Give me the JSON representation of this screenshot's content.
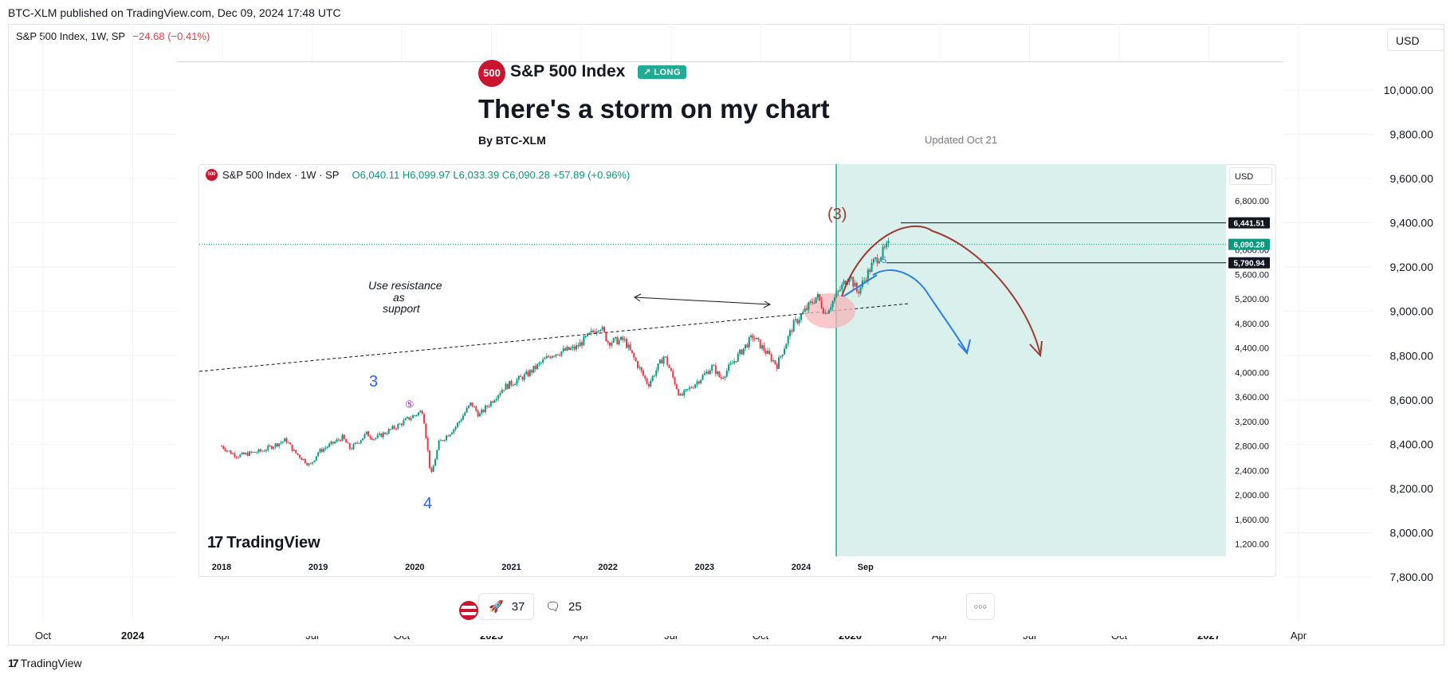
{
  "header": {
    "published_line": "BTC-XLM published on TradingView.com, Dec 09, 2024 17:48 UTC",
    "symbol_line": "S&P 500 Index, 1W, SP",
    "change": "−24.68 (−0.41%)",
    "currency": "USD"
  },
  "idea": {
    "badge": "500",
    "symbol": "S&P 500 Index",
    "direction": "LONG",
    "title": "There's a storm on my chart",
    "author": "By BTC-XLM",
    "updated": "Updated Oct 21"
  },
  "inner_chart": {
    "legend_title": "S&P 500 Index · 1W · SP",
    "ohlc": "O6,040.11 H6,099.97 L6,033.39 C6,090.28 +57.89 (+0.96%)",
    "currency": "USD",
    "price_tags": [
      "6,441.51",
      "6,090.28",
      "5,790.94"
    ],
    "annotations": {
      "resistance_note": [
        "Use resistance",
        "as",
        "support"
      ],
      "wave_3": "3",
      "wave_4": "4",
      "wave_5": "⑤",
      "wave_3_paren": "(3)",
      "wave_5_small": "5"
    },
    "logo": "TradingView"
  },
  "chart_data": [
    {
      "type": "axes",
      "y_ticks": [
        "10,000.00",
        "9,800.00",
        "9,600.00",
        "9,400.00",
        "9,200.00",
        "9,000.00",
        "8,800.00",
        "8,600.00",
        "8,400.00",
        "8,200.00",
        "8,000.00",
        "7,800.00"
      ],
      "x_ticks": [
        "Oct",
        "2024",
        "Apr",
        "Jul",
        "Oct",
        "2025",
        "Apr",
        "Jul",
        "Oct",
        "2026",
        "Apr",
        "Jul",
        "Oct",
        "2027",
        "Apr"
      ],
      "ylim": [
        7680,
        10280
      ]
    },
    {
      "type": "line",
      "title": "S&P 500 Index · 1W · SP",
      "x_ticks": [
        "2018",
        "2019",
        "2020",
        "2021",
        "2022",
        "2023",
        "2024",
        "Sep"
      ],
      "y_ticks": [
        "6,800.00",
        "6,000.00",
        "5,600.00",
        "5,200.00",
        "4,800.00",
        "4,400.00",
        "4,000.00",
        "3,600.00",
        "3,200.00",
        "2,800.00",
        "2,400.00",
        "2,000.00",
        "1,600.00",
        "1,200.00"
      ],
      "ylim": [
        1000,
        7400
      ],
      "series": [
        {
          "values": [
            [
              "2018-01",
              2800
            ],
            [
              "2018-02",
              2700
            ],
            [
              "2018-03",
              2640
            ],
            [
              "2018-06",
              2720
            ],
            [
              "2018-09",
              2900
            ],
            [
              "2018-10",
              2710
            ],
            [
              "2018-12",
              2480
            ],
            [
              "2019-01",
              2700
            ],
            [
              "2019-04",
              2940
            ],
            [
              "2019-05",
              2750
            ],
            [
              "2019-07",
              3000
            ],
            [
              "2019-08",
              2920
            ],
            [
              "2019-11",
              3140
            ],
            [
              "2019-12",
              3230
            ],
            [
              "2020-02",
              3380
            ],
            [
              "2020-03",
              2300
            ],
            [
              "2020-04",
              2850
            ],
            [
              "2020-06",
              3100
            ],
            [
              "2020-08",
              3500
            ],
            [
              "2020-09",
              3300
            ],
            [
              "2020-12",
              3750
            ],
            [
              "2021-03",
              3970
            ],
            [
              "2021-06",
              4300
            ],
            [
              "2021-09",
              4400
            ],
            [
              "2021-12",
              4770
            ],
            [
              "2022-01",
              4500
            ],
            [
              "2022-03",
              4530
            ],
            [
              "2022-06",
              3800
            ],
            [
              "2022-08",
              4280
            ],
            [
              "2022-10",
              3600
            ],
            [
              "2022-12",
              3840
            ],
            [
              "2023-02",
              4100
            ],
            [
              "2023-03",
              3900
            ],
            [
              "2023-07",
              4590
            ],
            [
              "2023-10",
              4120
            ],
            [
              "2023-12",
              4770
            ],
            [
              "2024-03",
              5250
            ],
            [
              "2024-04",
              4970
            ],
            [
              "2024-07",
              5600
            ],
            [
              "2024-08",
              5300
            ],
            [
              "2024-10",
              5800
            ],
            [
              "2024-12",
              6090
            ]
          ]
        }
      ],
      "levels": [
        6441.51,
        6090.28,
        5790.94
      ]
    }
  ],
  "actions": {
    "boosts": "37",
    "comments": "25",
    "more": "○○○"
  },
  "footer": {
    "logo": "TradingView"
  },
  "colors": {
    "up": "#089981",
    "down": "#f23645",
    "forecast_zone": "#d9f0ec",
    "projection_red": "#9c3b34",
    "projection_blue": "#2d7de0",
    "wave_label": "#2962ff",
    "wave5_purple": "#9c27b0"
  }
}
